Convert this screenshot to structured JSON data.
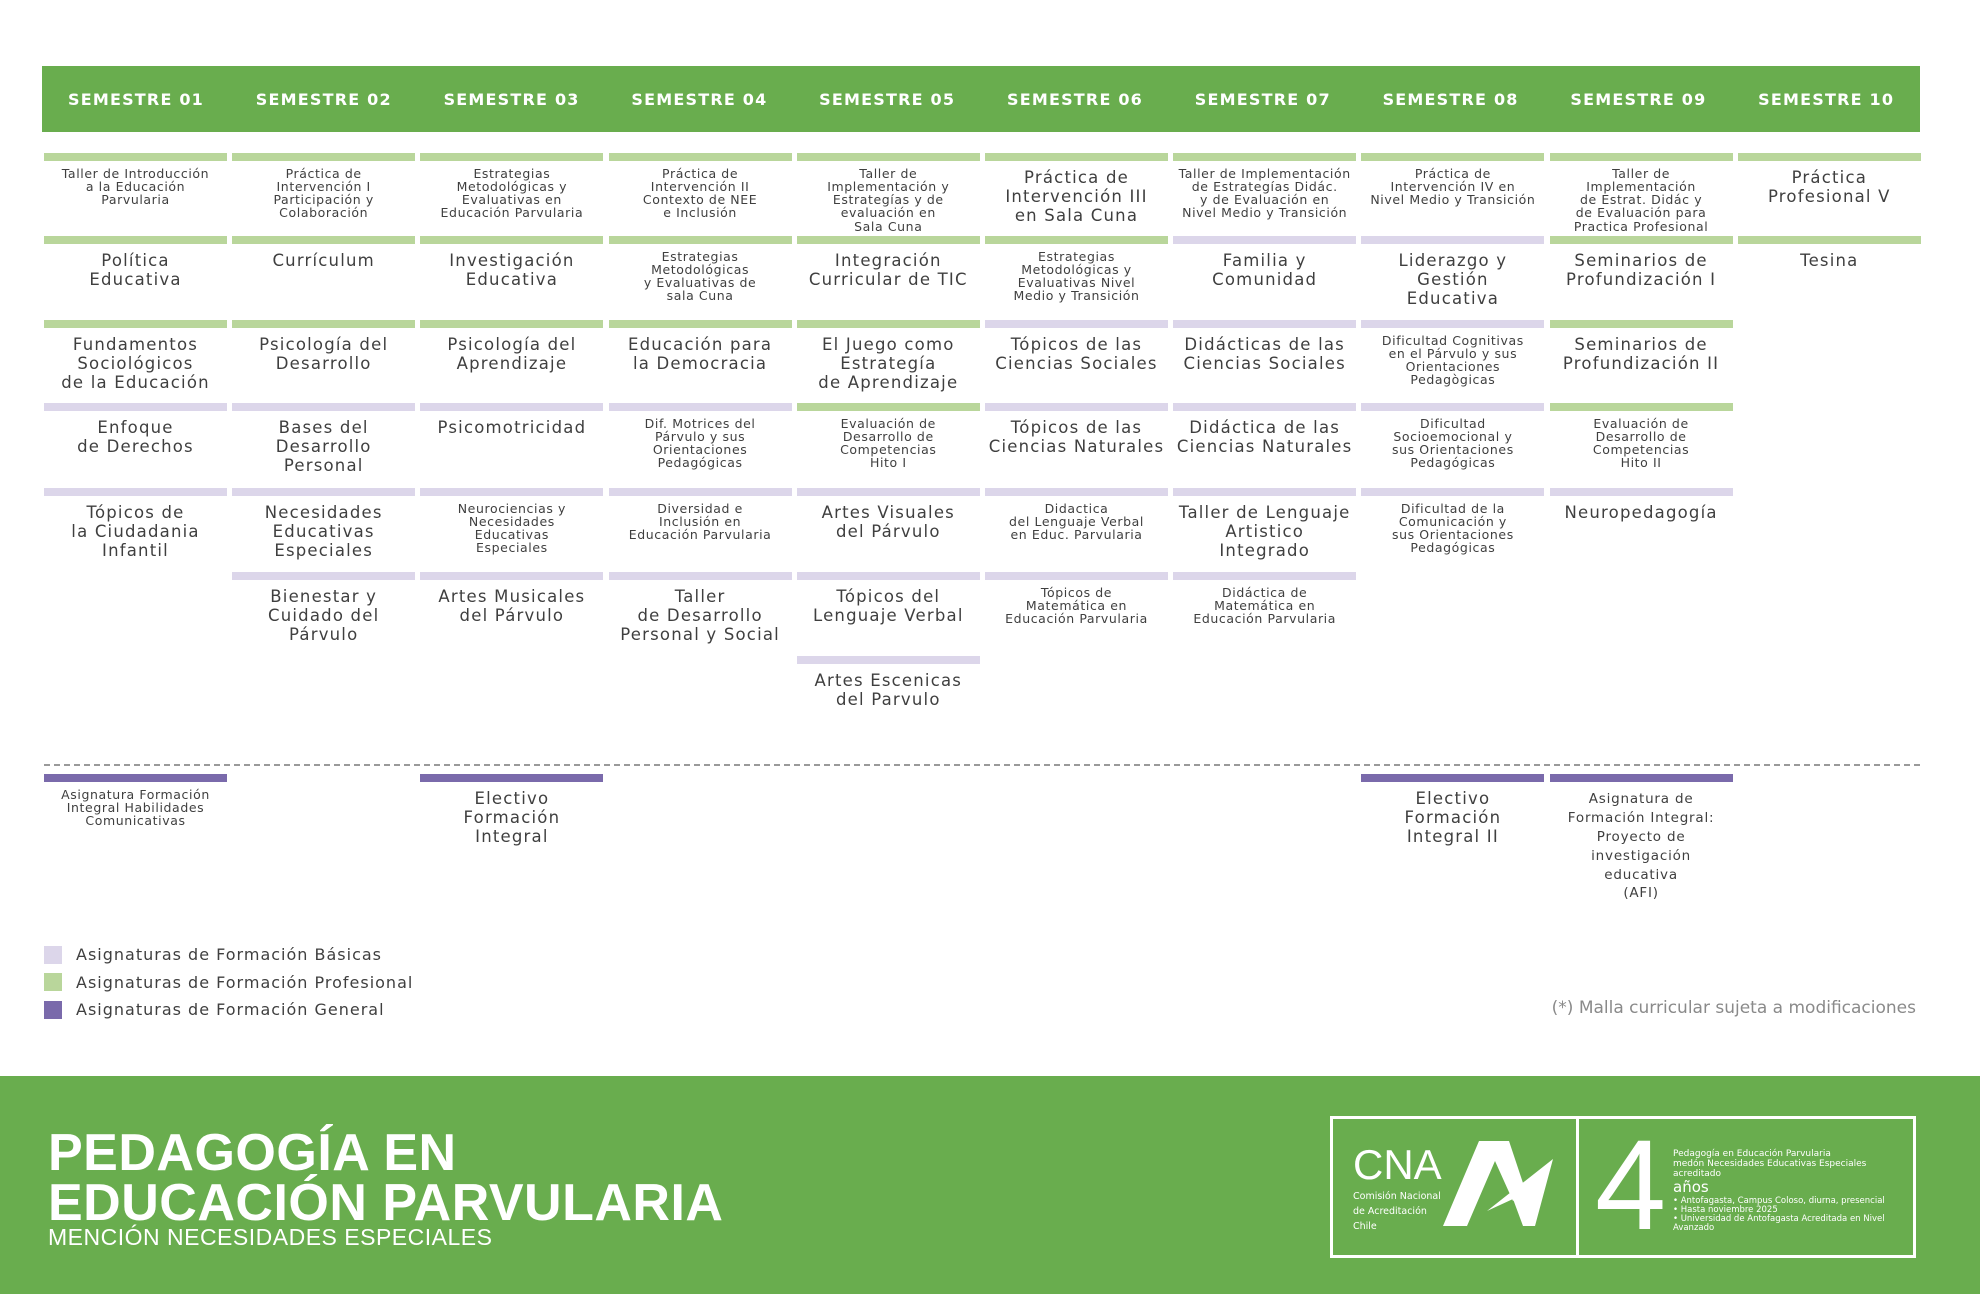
{
  "colors": {
    "header": "#69ad4e",
    "profesional": "#b9d69b",
    "basica": "#dcd6ea",
    "general": "#7a6aab"
  },
  "semesters": [
    "SEMESTRE 01",
    "SEMESTRE 02",
    "SEMESTRE 03",
    "SEMESTRE 04",
    "SEMESTRE 05",
    "SEMESTRE 06",
    "SEMESTRE 07",
    "SEMESTRE 08",
    "SEMESTRE 09",
    "SEMESTRE 10"
  ],
  "columns": [
    [
      {
        "type": "profesional",
        "size": "sm",
        "text": "Taller de Introducción\na la Educación\nParvularia"
      },
      {
        "type": "profesional",
        "size": "lg",
        "text": "Política\nEducativa"
      },
      {
        "type": "profesional",
        "size": "lg",
        "text": "Fundamentos\nSociológicos\nde la Educación"
      },
      {
        "type": "basica",
        "size": "lg",
        "text": "Enfoque\nde Derechos"
      },
      {
        "type": "basica",
        "size": "lg",
        "text": "Tópicos de\nla Ciudadania\nInfantil"
      }
    ],
    [
      {
        "type": "profesional",
        "size": "sm",
        "text": "Práctica de\nIntervención I\nParticipación y\nColaboración"
      },
      {
        "type": "profesional",
        "size": "lg",
        "text": "Currículum"
      },
      {
        "type": "profesional",
        "size": "lg",
        "text": "Psicología del\nDesarrollo"
      },
      {
        "type": "basica",
        "size": "lg",
        "text": "Bases del\nDesarrollo\nPersonal"
      },
      {
        "type": "basica",
        "size": "lg",
        "text": "Necesidades\nEducativas\nEspeciales"
      },
      {
        "type": "basica",
        "size": "lg",
        "text": "Bienestar y\nCuidado del\nPárvulo"
      }
    ],
    [
      {
        "type": "profesional",
        "size": "sm",
        "text": "Estrategias\nMetodológicas y\nEvaluativas en\nEducación Parvularia"
      },
      {
        "type": "profesional",
        "size": "lg",
        "text": "Investigación\nEducativa"
      },
      {
        "type": "profesional",
        "size": "lg",
        "text": "Psicología del\nAprendizaje"
      },
      {
        "type": "basica",
        "size": "lg",
        "text": "Psicomotricidad"
      },
      {
        "type": "basica",
        "size": "sm",
        "text": "Neurociencias y\nNecesidades\nEducativas\nEspeciales"
      },
      {
        "type": "basica",
        "size": "lg",
        "text": "Artes Musicales\ndel Párvulo"
      }
    ],
    [
      {
        "type": "profesional",
        "size": "sm",
        "text": "Práctica de\nIntervención II\nContexto de NEE\ne Inclusión"
      },
      {
        "type": "profesional",
        "size": "sm",
        "text": "Estrategias\nMetodológicas\ny Evaluativas de\nsala Cuna"
      },
      {
        "type": "profesional",
        "size": "lg",
        "text": "Educación para\nla Democracia"
      },
      {
        "type": "basica",
        "size": "sm",
        "text": "Dif. Motrices del\nPárvulo y sus\nOrientaciones\nPedagógicas"
      },
      {
        "type": "basica",
        "size": "sm",
        "text": "Diversidad e\nInclusión en\nEducación Parvularia"
      },
      {
        "type": "basica",
        "size": "lg",
        "text": "Taller\nde Desarrollo\nPersonal y Social"
      }
    ],
    [
      {
        "type": "profesional",
        "size": "sm",
        "text": "Taller de\nImplementación y\nEstrategías y de\nevaluación en\nSala Cuna"
      },
      {
        "type": "profesional",
        "size": "lg",
        "text": "Integración\nCurricular de TIC"
      },
      {
        "type": "profesional",
        "size": "lg",
        "text": "El Juego como\nEstrategía\nde Aprendizaje"
      },
      {
        "type": "profesional",
        "size": "sm",
        "text": "Evaluación de\nDesarrollo de\nCompetencias\nHito I"
      },
      {
        "type": "basica",
        "size": "lg",
        "text": "Artes Visuales\ndel Párvulo"
      },
      {
        "type": "basica",
        "size": "lg",
        "text": "Tópicos del\nLenguaje Verbal"
      },
      {
        "type": "basica",
        "size": "lg",
        "text": "Artes Escenicas\ndel Parvulo"
      }
    ],
    [
      {
        "type": "profesional",
        "size": "lg",
        "text": "Práctica de\nIntervención III\nen Sala Cuna"
      },
      {
        "type": "profesional",
        "size": "sm",
        "text": "Estrategias\nMetodológicas y\nEvaluativas Nivel\nMedio y Transición"
      },
      {
        "type": "basica",
        "size": "lg",
        "text": "Tópicos de las\nCiencias Sociales"
      },
      {
        "type": "basica",
        "size": "lg",
        "text": "Tópicos de las\nCiencias Naturales"
      },
      {
        "type": "basica",
        "size": "sm",
        "text": "Didactica\ndel Lenguaje Verbal\nen Educ. Parvularia"
      },
      {
        "type": "basica",
        "size": "sm",
        "text": "Tópicos de\nMatemática en\nEducación Parvularia"
      }
    ],
    [
      {
        "type": "profesional",
        "size": "sm",
        "text": "Taller de Implementación\nde Estrategías Didác.\ny de Evaluación en\nNivel Medio y Transición"
      },
      {
        "type": "basica",
        "size": "lg",
        "text": "Familia y\nComunidad"
      },
      {
        "type": "basica",
        "size": "lg",
        "text": "Didácticas de las\nCiencias Sociales"
      },
      {
        "type": "basica",
        "size": "lg",
        "text": "Didáctica de las\nCiencias Naturales"
      },
      {
        "type": "basica",
        "size": "lg",
        "text": "Taller de Lenguaje\nArtistico\nIntegrado"
      },
      {
        "type": "basica",
        "size": "sm",
        "text": "Didáctica de\nMatemática en\nEducación Parvularia"
      }
    ],
    [
      {
        "type": "profesional",
        "size": "sm",
        "text": "Práctica de\nIntervención IV en\nNivel Medio y Transición"
      },
      {
        "type": "basica",
        "size": "lg",
        "text": "Liderazgo y\nGestión\nEducativa"
      },
      {
        "type": "basica",
        "size": "sm",
        "text": "Dificultad Cognitivas\nen el Párvulo y sus\nOrientaciones\nPedagògicas"
      },
      {
        "type": "basica",
        "size": "sm",
        "text": "Dificultad\nSocioemocional y\nsus Orientaciones\nPedagógicas"
      },
      {
        "type": "basica",
        "size": "sm",
        "text": "Dificultad de la\nComunicación y\nsus Orientaciones\nPedagógicas"
      }
    ],
    [
      {
        "type": "profesional",
        "size": "sm",
        "text": "Taller de\nImplementación\nde Estrat. Didác y\nde Evaluación para\nPractica Profesional"
      },
      {
        "type": "profesional",
        "size": "lg",
        "text": "Seminarios de\nProfundización I"
      },
      {
        "type": "profesional",
        "size": "lg",
        "text": "Seminarios de\nProfundización II"
      },
      {
        "type": "profesional",
        "size": "sm",
        "text": "Evaluación de\nDesarrollo de\nCompetencias\nHito II"
      },
      {
        "type": "basica",
        "size": "lg",
        "text": "Neuropedagogía"
      }
    ],
    [
      {
        "type": "profesional",
        "size": "lg",
        "text": "Práctica\nProfesional V"
      },
      {
        "type": "profesional",
        "size": "lg",
        "text": "Tesina"
      }
    ]
  ],
  "general": [
    {
      "col": 0,
      "size": "sm",
      "text": "Asignatura Formación\nIntegral Habilidades\nComunicativas"
    },
    {
      "col": 2,
      "size": "lg",
      "text": "Electivo\nFormación\nIntegral"
    },
    {
      "col": 7,
      "size": "lg",
      "text": "Electivo\nFormación\nIntegral II"
    },
    {
      "col": 8,
      "size": "md",
      "text": "Asignatura de\nFormación Integral:\nProyecto de\ninvestigación\neducativa\n(AFI)"
    }
  ],
  "legend": [
    {
      "type": "basica",
      "label": "Asignaturas de Formación Básicas"
    },
    {
      "type": "profesional",
      "label": "Asignaturas de Formación Profesional"
    },
    {
      "type": "general",
      "label": "Asignaturas de Formación General"
    }
  ],
  "note": "(*) Malla curricular sujeta a modificaciones",
  "footer": {
    "title_line1": "PEDAGOGÍA EN",
    "title_line2": "EDUCACIÓN PARVULARIA",
    "subtitle": "MENCIÓN NECESIDADES ESPECIALES",
    "logo": {
      "cna": "CNA",
      "cna_sub": "Comisión Nacional\nde Acreditación\nChile",
      "years": "4",
      "program": "Pedagogía en Educación Parvularia",
      "mention": "medón Necesidades Educativas Especiales",
      "accredited": "acreditado",
      "years_label": "años",
      "bullets": [
        "• Antofagasta, Campus Coloso, diurna, presencial",
        "• Hasta noviembre 2025",
        "• Universidad de Antofagasta Acreditada en Nivel Avanzado"
      ]
    }
  }
}
